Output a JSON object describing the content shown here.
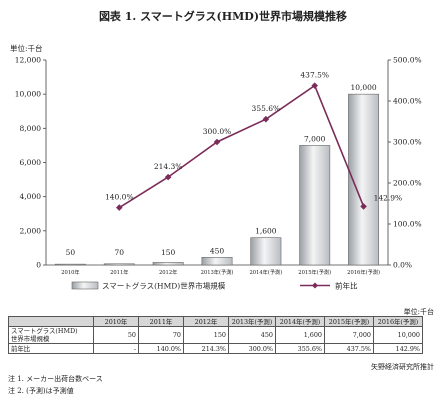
{
  "title": "図表 1.  スマートグラス(HMD)世界市場規模推移",
  "chart_data": {
    "type": "bar+line",
    "categories": [
      "2010年",
      "2011年",
      "2012年",
      "2013年(予測)",
      "2014年(予測)",
      "2015年(予測)",
      "2016年(予測)"
    ],
    "left_axis": {
      "unit_label": "単位:千台",
      "range": [
        0,
        12000
      ],
      "ticks": [
        "0",
        "2,000",
        "4,000",
        "6,000",
        "8,000",
        "10,000",
        "12,000"
      ]
    },
    "right_axis": {
      "range": [
        0,
        500
      ],
      "ticks": [
        "0.0%",
        "100.0%",
        "200.0%",
        "300.0%",
        "400.0%",
        "500.0%"
      ]
    },
    "series": [
      {
        "name": "スマートグラス(HMD)世界市場規模",
        "type": "bar",
        "values": [
          50,
          70,
          150,
          450,
          1600,
          7000,
          10000
        ],
        "labels": [
          "50",
          "70",
          "150",
          "450",
          "1,600",
          "7,000",
          "10,000"
        ]
      },
      {
        "name": "前年比",
        "type": "line",
        "axis": "right",
        "values": [
          null,
          140.0,
          214.3,
          300.0,
          355.6,
          437.5,
          142.9
        ],
        "labels": [
          "",
          "140.0%",
          "214.3%",
          "300.0%",
          "355.6%",
          "437.5%",
          "142.9%"
        ],
        "color": "#7b2c5a"
      }
    ]
  },
  "table": {
    "unit": "単位:千台",
    "headers": [
      "",
      "2010年",
      "2011年",
      "2012年",
      "2013年(予測)",
      "2014年(予測)",
      "2015年(予測)",
      "2016年(予測)"
    ],
    "rows": [
      {
        "label_lines": [
          "スマートグラス(HMD)",
          "世界市場規模"
        ],
        "cells": [
          "50",
          "70",
          "150",
          "450",
          "1,600",
          "7,000",
          "10,000"
        ]
      },
      {
        "label_lines": [
          "前年比"
        ],
        "cells": [
          "-",
          "140.0%",
          "214.3%",
          "300.0%",
          "355.6%",
          "437.5%",
          "142.9%"
        ]
      }
    ]
  },
  "source": "矢野経済研究所推計",
  "notes": [
    "注 1.  メーカー出荷台数ベース",
    "注 2.  (予測)は予測値"
  ]
}
